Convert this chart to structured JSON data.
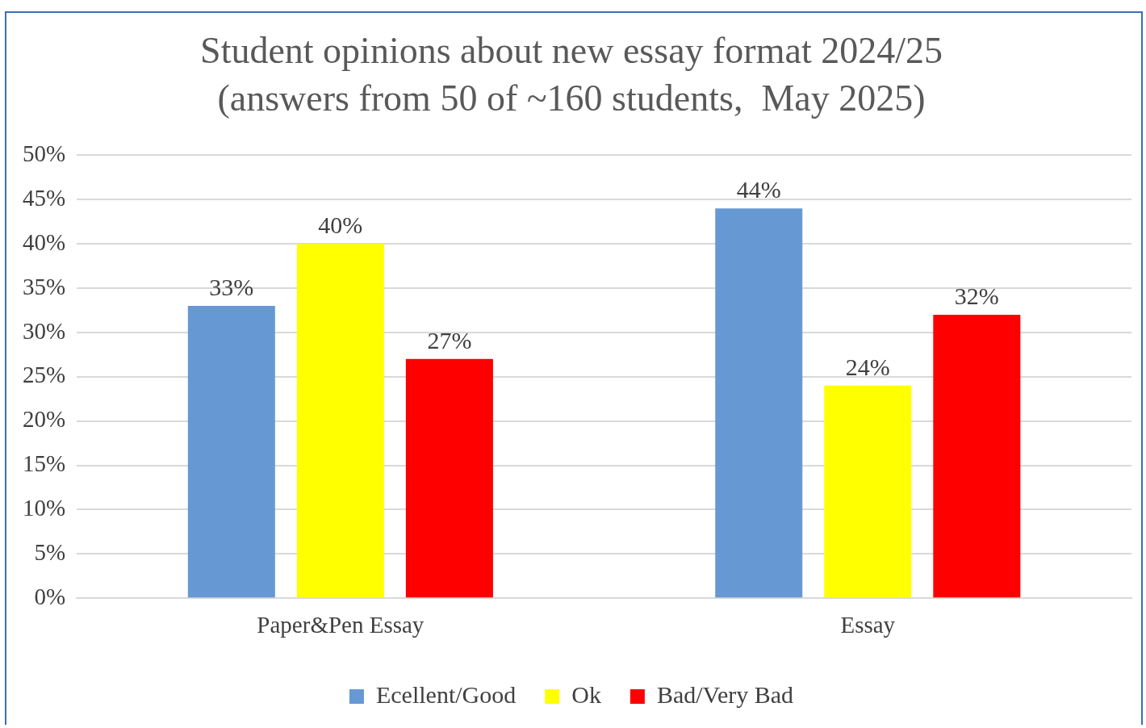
{
  "chart_data": {
    "type": "bar",
    "title": "Student opinions about new essay format 2024/25",
    "subtitle": "(answers from 50 of ~160 students,  May 2025)",
    "categories": [
      "Paper&Pen Essay",
      "Essay"
    ],
    "series": [
      {
        "name": "Ecellent/Good",
        "color": "#6699d3",
        "values": [
          33,
          44
        ]
      },
      {
        "name": "Ok",
        "color": "#ffff00",
        "values": [
          40,
          24
        ]
      },
      {
        "name": "Bad/Very Bad",
        "color": "#ff0000",
        "values": [
          27,
          32
        ]
      }
    ],
    "ylim": [
      0,
      50
    ],
    "yticks": [
      {
        "value": 0,
        "label": "0%"
      },
      {
        "value": 5,
        "label": "5%"
      },
      {
        "value": 10,
        "label": "10%"
      },
      {
        "value": 15,
        "label": "15%"
      },
      {
        "value": 20,
        "label": "20%"
      },
      {
        "value": 25,
        "label": "25%"
      },
      {
        "value": 30,
        "label": "30%"
      },
      {
        "value": 35,
        "label": "35%"
      },
      {
        "value": 40,
        "label": "40%"
      },
      {
        "value": 45,
        "label": "45%"
      },
      {
        "value": 50,
        "label": "50%"
      }
    ],
    "value_labels": [
      [
        "33%",
        "44%"
      ],
      [
        "40%",
        "24%"
      ],
      [
        "27%",
        "32%"
      ]
    ],
    "grid": "y",
    "legend": "bottom"
  }
}
